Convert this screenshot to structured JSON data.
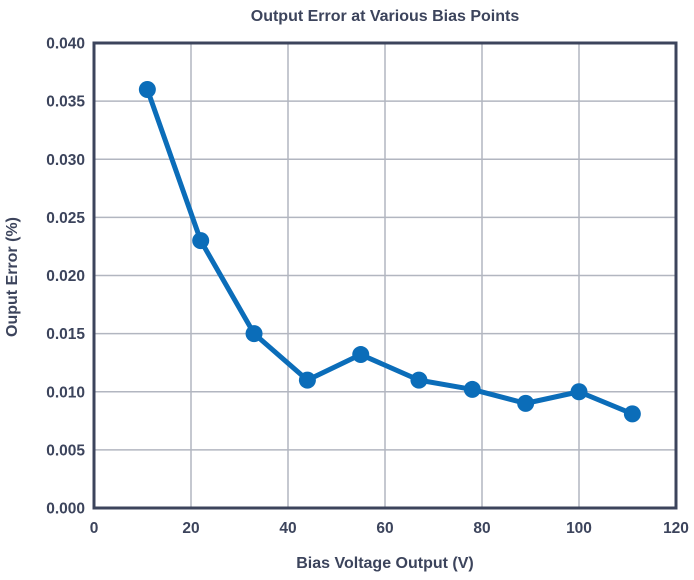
{
  "chart_data": {
    "type": "line",
    "title": "Output Error at Various Bias Points",
    "xlabel": "Bias Voltage Output (V)",
    "ylabel": "Ouput Error (%)",
    "series": [
      {
        "name": "Output Error",
        "x": [
          11,
          22,
          33,
          44,
          55,
          67,
          78,
          89,
          100,
          111
        ],
        "y": [
          0.036,
          0.023,
          0.015,
          0.011,
          0.0132,
          0.011,
          0.0102,
          0.009,
          0.01,
          0.0081
        ]
      }
    ],
    "xlim": [
      0,
      120
    ],
    "ylim": [
      0,
      0.04
    ],
    "xticks": [
      0,
      20,
      40,
      60,
      80,
      100,
      120
    ],
    "yticks": [
      0,
      0.005,
      0.01,
      0.015,
      0.02,
      0.025,
      0.03,
      0.035,
      0.04
    ],
    "xtick_labels": [
      "0",
      "20",
      "40",
      "60",
      "80",
      "100",
      "120"
    ],
    "ytick_labels": [
      "0.000",
      "0.005",
      "0.010",
      "0.015",
      "0.020",
      "0.025",
      "0.030",
      "0.035",
      "0.040"
    ],
    "grid": true,
    "legend": "none",
    "marker": "circle",
    "colors": {
      "line": "#0b6db9",
      "marker": "#0b6db9",
      "grid": "#b2b6c0",
      "axis": "#3c445c",
      "text": "#3c445c",
      "background": "#ffffff"
    }
  }
}
